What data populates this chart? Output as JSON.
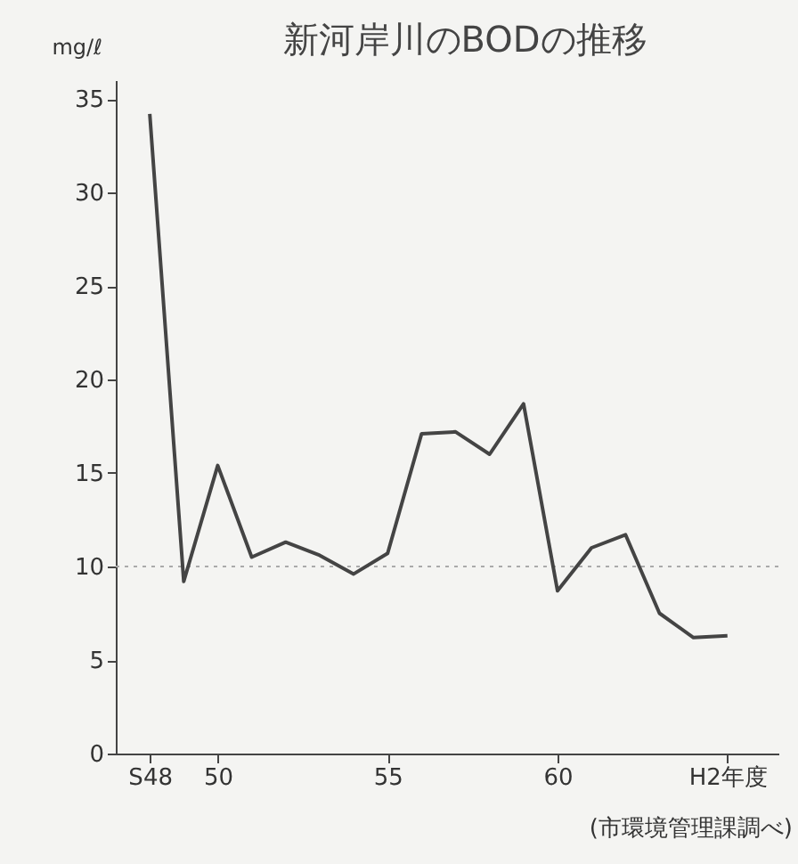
{
  "chart_data": {
    "type": "line",
    "title": "新河岸川のBODの推移",
    "ylabel": "mg/ℓ",
    "x": [
      48,
      49,
      50,
      51,
      52,
      53,
      54,
      55,
      56,
      57,
      58,
      59,
      60,
      61,
      62,
      63,
      64,
      65
    ],
    "series": [
      {
        "color": "#444444",
        "values": [
          34.2,
          9.2,
          15.4,
          10.5,
          11.3,
          10.6,
          9.6,
          10.7,
          17.1,
          17.2,
          16.0,
          18.7,
          8.7,
          11.0,
          11.7,
          7.5,
          6.2,
          6.3
        ]
      }
    ],
    "xlim": [
      47,
      66.5
    ],
    "xticks": [
      {
        "value": 48,
        "label": "S48"
      },
      50,
      55,
      60,
      {
        "value": 65,
        "label": "H2年度"
      }
    ],
    "ylim": [
      0,
      36
    ],
    "yticks": [
      0,
      5,
      10,
      15,
      20,
      25,
      30,
      35
    ],
    "ref_lines": [
      {
        "axis": "y",
        "value": 10,
        "color": "#aaaaaa",
        "line_style": "dotted"
      }
    ],
    "annotations": [
      "(市環境管理課調べ)"
    ],
    "grid": false,
    "marker": "none",
    "line_style": "solid"
  }
}
